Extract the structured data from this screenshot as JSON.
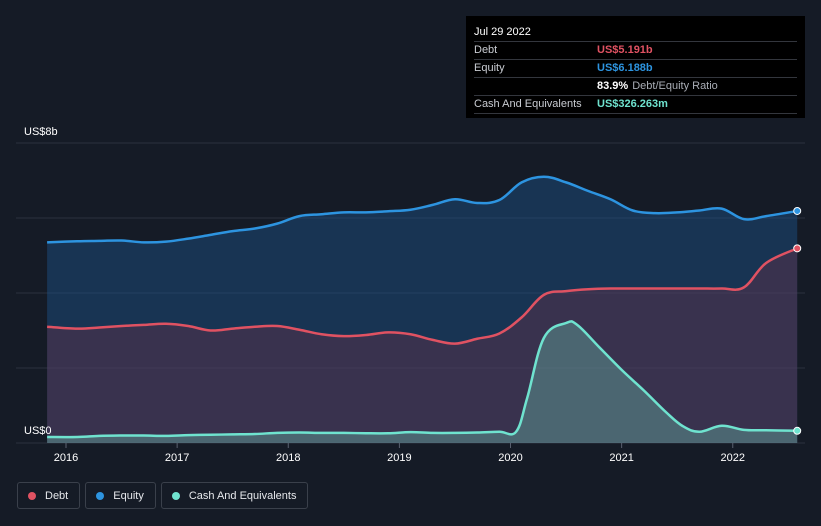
{
  "tooltip": {
    "date": "Jul 29 2022",
    "debt_label": "Debt",
    "debt_value": "US$5.191b",
    "equity_label": "Equity",
    "equity_value": "US$6.188b",
    "ratio_value": "83.9%",
    "ratio_label": "Debt/Equity Ratio",
    "cash_label": "Cash And Equivalents",
    "cash_value": "US$326.263m"
  },
  "legend": {
    "debt": "Debt",
    "equity": "Equity",
    "cash": "Cash And Equivalents"
  },
  "colors": {
    "debt": "#e05262",
    "equity": "#2d94e0",
    "cash": "#6fe3cf",
    "background": "#151b26"
  },
  "chart_data": {
    "type": "area",
    "ylim": [
      0,
      8
    ],
    "y_unit": "US$ billions",
    "y_tick_labels": {
      "top": "US$8b",
      "bottom": "US$0"
    },
    "x_tick_labels": [
      "2016",
      "2017",
      "2018",
      "2019",
      "2020",
      "2021",
      "2022"
    ],
    "x_ticks": [
      2016,
      2017,
      2018,
      2019,
      2020,
      2021,
      2022
    ],
    "xlim": [
      2015.55,
      2022.65
    ],
    "grid": true,
    "series": [
      {
        "name": "Equity",
        "x": [
          2015.83,
          2016.1,
          2016.3,
          2016.5,
          2016.7,
          2016.9,
          2017.1,
          2017.3,
          2017.5,
          2017.7,
          2017.9,
          2018.1,
          2018.3,
          2018.5,
          2018.7,
          2018.9,
          2019.1,
          2019.3,
          2019.5,
          2019.7,
          2019.9,
          2020.1,
          2020.3,
          2020.5,
          2020.7,
          2020.9,
          2021.1,
          2021.3,
          2021.5,
          2021.7,
          2021.9,
          2022.1,
          2022.3,
          2022.58
        ],
        "y": [
          5.35,
          5.38,
          5.39,
          5.4,
          5.35,
          5.37,
          5.45,
          5.55,
          5.65,
          5.72,
          5.85,
          6.05,
          6.1,
          6.15,
          6.15,
          6.18,
          6.22,
          6.35,
          6.5,
          6.4,
          6.48,
          6.95,
          7.1,
          6.95,
          6.72,
          6.5,
          6.2,
          6.13,
          6.15,
          6.2,
          6.25,
          5.97,
          6.05,
          6.188
        ]
      },
      {
        "name": "Debt",
        "x": [
          2015.83,
          2016.1,
          2016.3,
          2016.5,
          2016.7,
          2016.9,
          2017.1,
          2017.3,
          2017.5,
          2017.7,
          2017.9,
          2018.1,
          2018.3,
          2018.5,
          2018.7,
          2018.9,
          2019.1,
          2019.3,
          2019.5,
          2019.7,
          2019.9,
          2020.1,
          2020.3,
          2020.5,
          2020.7,
          2020.9,
          2021.1,
          2021.3,
          2021.5,
          2021.7,
          2021.9,
          2022.1,
          2022.3,
          2022.58
        ],
        "y": [
          3.1,
          3.05,
          3.08,
          3.12,
          3.15,
          3.18,
          3.12,
          3.0,
          3.05,
          3.1,
          3.12,
          3.02,
          2.9,
          2.85,
          2.88,
          2.95,
          2.9,
          2.75,
          2.65,
          2.78,
          2.92,
          3.35,
          3.95,
          4.05,
          4.1,
          4.12,
          4.12,
          4.12,
          4.12,
          4.12,
          4.12,
          4.15,
          4.8,
          5.191
        ]
      },
      {
        "name": "Cash And Equivalents",
        "x": [
          2015.83,
          2016.1,
          2016.3,
          2016.5,
          2016.7,
          2016.9,
          2017.1,
          2017.3,
          2017.5,
          2017.7,
          2017.9,
          2018.1,
          2018.3,
          2018.5,
          2018.7,
          2018.9,
          2019.1,
          2019.3,
          2019.5,
          2019.7,
          2019.9,
          2020.05,
          2020.15,
          2020.3,
          2020.5,
          2020.6,
          2020.8,
          2021.0,
          2021.2,
          2021.4,
          2021.55,
          2021.7,
          2021.9,
          2022.1,
          2022.3,
          2022.58
        ],
        "y": [
          0.16,
          0.16,
          0.19,
          0.2,
          0.2,
          0.19,
          0.21,
          0.22,
          0.23,
          0.24,
          0.27,
          0.28,
          0.27,
          0.27,
          0.26,
          0.26,
          0.29,
          0.27,
          0.27,
          0.28,
          0.3,
          0.3,
          1.2,
          2.8,
          3.2,
          3.15,
          2.55,
          1.95,
          1.4,
          0.82,
          0.45,
          0.3,
          0.46,
          0.35,
          0.34,
          0.326
        ]
      }
    ]
  }
}
